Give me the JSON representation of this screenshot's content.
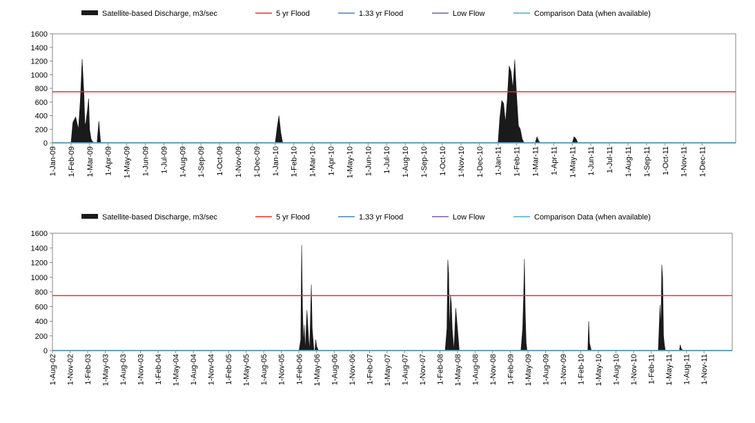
{
  "chart_data": [
    {
      "type": "area",
      "title": "",
      "xlabel": "",
      "ylabel": "",
      "ylim": [
        0,
        1600
      ],
      "yticks": [
        0,
        200,
        400,
        600,
        800,
        1000,
        1200,
        1400,
        1600
      ],
      "grid": false,
      "legend": {
        "placement": "top",
        "entries": [
          {
            "label": "Satellite-based Discharge, m3/sec",
            "color": "#1a1a1a",
            "style": "area"
          },
          {
            "label": "5 yr Flood",
            "color": "#e8312a",
            "style": "line"
          },
          {
            "label": "1.33 yr Flood",
            "color": "#4a7ebb",
            "style": "line"
          },
          {
            "label": "Low Flow",
            "color": "#7e5aa6",
            "style": "line"
          },
          {
            "label": "Comparison Data (when available)",
            "color": "#4bacc6",
            "style": "line"
          }
        ]
      },
      "x_tick_labels": [
        "1-Jan-09",
        "1-Feb-09",
        "1-Mar-09",
        "1-Apr-09",
        "1-May-09",
        "1-Jun-09",
        "1-Jul-09",
        "1-Aug-09",
        "1-Sep-09",
        "1-Oct-09",
        "1-Nov-09",
        "1-Dec-09",
        "1-Jan-10",
        "1-Feb-10",
        "1-Mar-10",
        "1-Apr-10",
        "1-May-10",
        "1-Jun-10",
        "1-Jul-10",
        "1-Aug-10",
        "1-Sep-10",
        "1-Oct-10",
        "1-Nov-10",
        "1-Dec-10",
        "1-Jan-11",
        "1-Feb-11",
        "1-Mar-11",
        "1-Apr-11",
        "1-May-11",
        "1-Jun-11",
        "1-Jul-11",
        "1-Aug-11",
        "1-Sep-11",
        "1-Oct-11",
        "1-Nov-11",
        "1-Dec-11"
      ],
      "xlim": [
        0,
        36.8
      ],
      "reference_lines": {
        "5 yr Flood": 750,
        "1.33 yr Flood": 0,
        "Low Flow": 0,
        "Comparison Data (when available)": 0
      },
      "series": [
        {
          "name": "Satellite-based Discharge, m3/sec",
          "x": [
            0,
            1.0,
            1.1,
            1.25,
            1.4,
            1.5,
            1.6,
            1.7,
            1.75,
            1.8,
            1.88,
            1.95,
            2.0,
            2.08,
            2.15,
            2.25,
            2.4,
            2.5,
            2.55,
            2.6,
            2.7,
            2.9,
            3.0,
            3.5,
            12.0,
            12.1,
            12.2,
            12.3,
            12.4,
            12.5,
            24.0,
            24.1,
            24.2,
            24.3,
            24.4,
            24.5,
            24.6,
            24.7,
            24.8,
            24.9,
            25.0,
            25.1,
            25.2,
            25.3,
            25.4,
            25.5,
            25.6,
            25.7,
            26.0,
            26.1,
            26.2,
            26.3,
            28.0,
            28.1,
            28.2,
            28.3,
            36.8
          ],
          "y": [
            0,
            0,
            300,
            380,
            200,
            620,
            1230,
            700,
            250,
            300,
            470,
            650,
            200,
            60,
            20,
            0,
            0,
            320,
            150,
            0,
            0,
            0,
            0,
            0,
            0,
            220,
            400,
            150,
            0,
            0,
            0,
            380,
            620,
            580,
            300,
            650,
            1130,
            1050,
            800,
            1220,
            700,
            250,
            200,
            60,
            0,
            0,
            0,
            0,
            0,
            90,
            20,
            0,
            0,
            90,
            60,
            0,
            0
          ]
        }
      ]
    },
    {
      "type": "area",
      "title": "",
      "xlabel": "",
      "ylabel": "",
      "ylim": [
        0,
        1600
      ],
      "yticks": [
        0,
        200,
        400,
        600,
        800,
        1000,
        1200,
        1400,
        1600
      ],
      "grid": false,
      "legend": {
        "placement": "top",
        "entries": [
          {
            "label": "Satellite-based Discharge, m3/sec",
            "color": "#1a1a1a",
            "style": "area"
          },
          {
            "label": "5 yr Flood",
            "color": "#e8312a",
            "style": "line"
          },
          {
            "label": "1.33 yr Flood",
            "color": "#4a7ebb",
            "style": "line"
          },
          {
            "label": "Low Flow",
            "color": "#7e5aa6",
            "style": "line"
          },
          {
            "label": "Comparison Data (when available)",
            "color": "#4bacc6",
            "style": "line"
          }
        ]
      },
      "x_tick_labels": [
        "1-Aug-02",
        "1-Nov-02",
        "1-Feb-03",
        "1-May-03",
        "1-Aug-03",
        "1-Nov-03",
        "1-Feb-04",
        "1-May-04",
        "1-Aug-04",
        "1-Nov-04",
        "1-Feb-05",
        "1-May-05",
        "1-Aug-05",
        "1-Nov-05",
        "1-Feb-06",
        "1-May-06",
        "1-Aug-06",
        "1-Nov-06",
        "1-Feb-07",
        "1-May-07",
        "1-Aug-07",
        "1-Nov-07",
        "1-Feb-08",
        "1-May-08",
        "1-Aug-08",
        "1-Nov-08",
        "1-Feb-09",
        "1-May-09",
        "1-Aug-09",
        "1-Nov-09",
        "1-Feb-10",
        "1-May-10",
        "1-Aug-10",
        "1-Nov-10",
        "1-Feb-11",
        "1-May-11",
        "1-Aug-11",
        "1-Nov-11"
      ],
      "xlim": [
        0,
        38.6
      ],
      "reference_lines": {
        "5 yr Flood": 750,
        "1.33 yr Flood": 0,
        "Low Flow": 0,
        "Comparison Data (when available)": 0
      },
      "series": [
        {
          "name": "Satellite-based Discharge, m3/sec",
          "x": [
            0,
            14.0,
            14.1,
            14.15,
            14.2,
            14.25,
            14.3,
            14.35,
            14.45,
            14.55,
            14.6,
            14.7,
            14.75,
            14.85,
            14.9,
            14.95,
            15.0,
            15.1,
            15.2,
            15.25,
            15.3,
            15.35,
            15.4,
            15.5,
            22.3,
            22.4,
            22.45,
            22.5,
            22.55,
            22.6,
            22.65,
            22.7,
            22.8,
            22.9,
            23.0,
            23.1,
            23.2,
            23.3,
            23.5,
            26.6,
            26.7,
            26.75,
            26.8,
            26.85,
            26.9,
            26.95,
            27.0,
            27.05,
            27.1,
            27.2,
            27.3,
            30.4,
            30.45,
            30.5,
            30.6,
            34.4,
            34.5,
            34.55,
            34.6,
            34.65,
            34.7,
            34.75,
            34.8,
            34.9,
            35.0,
            35.6,
            35.65,
            35.7,
            35.8,
            38.6
          ],
          "y": [
            0,
            0,
            150,
            1440,
            600,
            100,
            350,
            0,
            550,
            150,
            0,
            900,
            300,
            0,
            0,
            150,
            60,
            0,
            0,
            0,
            0,
            0,
            0,
            0,
            0,
            300,
            1240,
            1050,
            200,
            760,
            650,
            300,
            0,
            580,
            300,
            0,
            0,
            0,
            0,
            0,
            300,
            700,
            1250,
            500,
            100,
            0,
            0,
            0,
            0,
            0,
            0,
            0,
            400,
            100,
            0,
            0,
            620,
            300,
            1170,
            1000,
            200,
            80,
            0,
            0,
            0,
            0,
            80,
            30,
            0,
            0
          ]
        }
      ]
    }
  ]
}
